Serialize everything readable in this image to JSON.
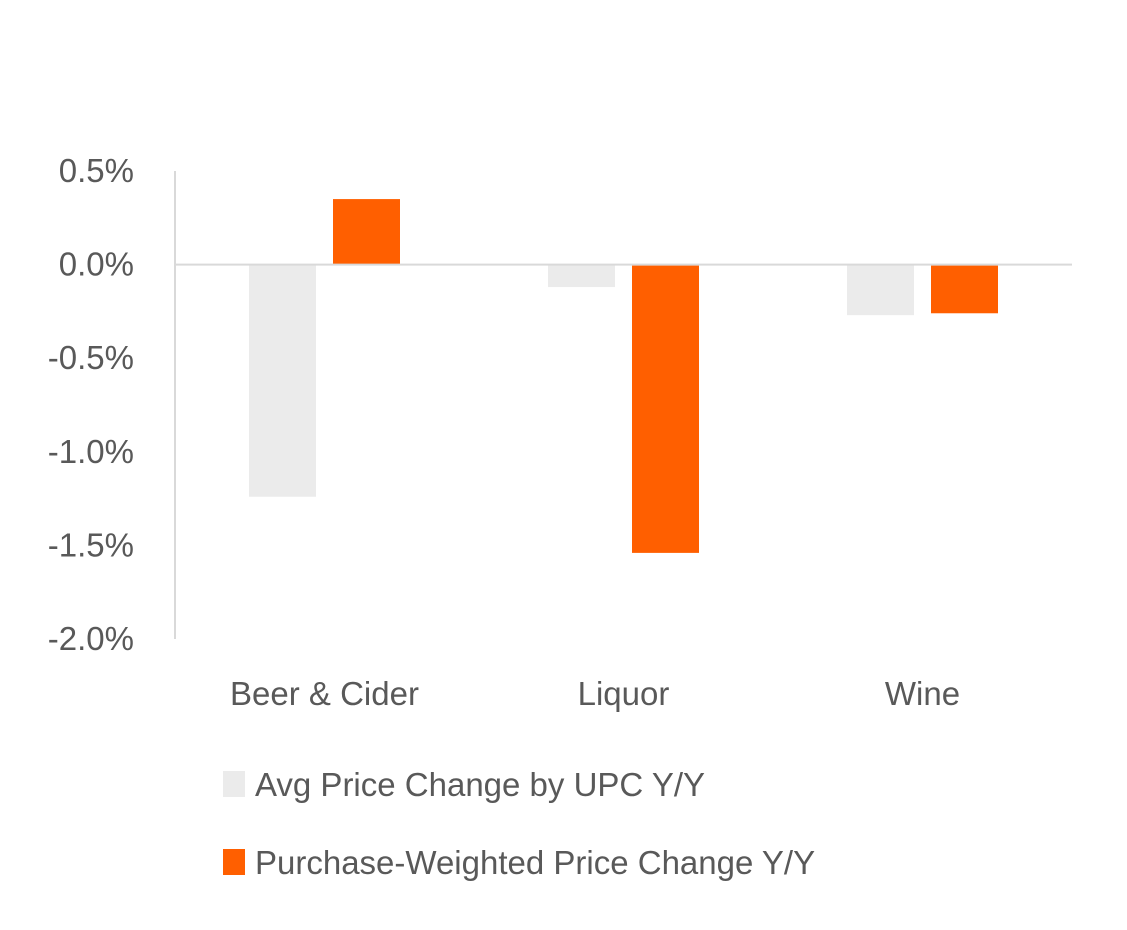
{
  "chart_data": {
    "type": "bar",
    "title": "",
    "xlabel": "",
    "ylabel": "",
    "categories": [
      "Beer & Cider",
      "Liquor",
      "Wine"
    ],
    "series": [
      {
        "name": "Avg Price Change by UPC Y/Y",
        "color": "#ebebeb",
        "values": [
          -1.24,
          -0.12,
          -0.27
        ]
      },
      {
        "name": "Purchase-Weighted Price Change Y/Y",
        "color": "#ff5f00",
        "values": [
          0.35,
          -1.54,
          -0.26
        ]
      }
    ],
    "ylim": [
      -2.0,
      0.5
    ],
    "yticks": [
      0.5,
      0.0,
      -0.5,
      -1.0,
      -1.5,
      -2.0
    ],
    "ytick_labels": [
      "0.5%",
      "0.0%",
      "-0.5%",
      "-1.0%",
      "-1.5%",
      "-2.0%"
    ],
    "value_unit": "%",
    "grid": false,
    "legend_position": "bottom"
  },
  "legend": {
    "items": [
      {
        "label": "Avg Price Change by UPC Y/Y",
        "color": "#ebebeb"
      },
      {
        "label": "Purchase-Weighted Price Change Y/Y",
        "color": "#ff5f00"
      }
    ]
  }
}
